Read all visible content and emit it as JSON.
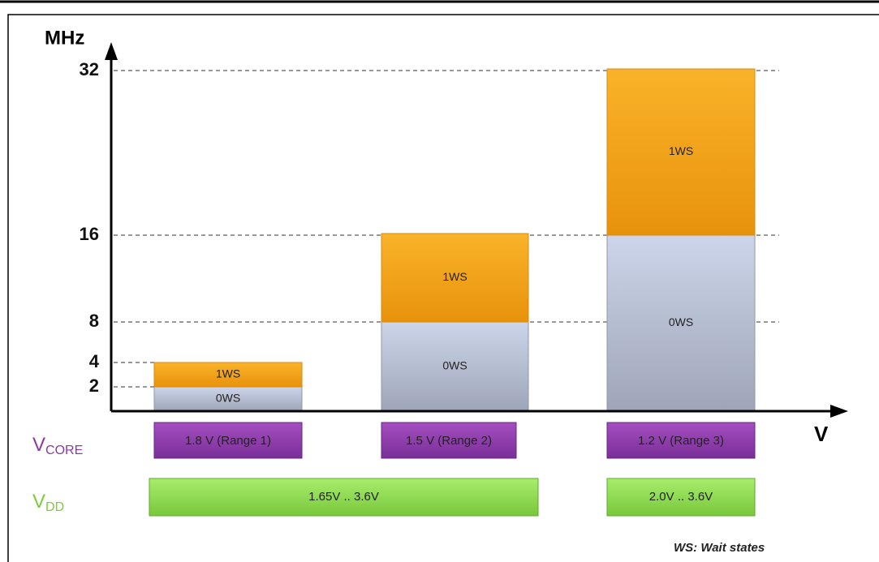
{
  "axis": {
    "y_label": "MHz",
    "x_label": "V",
    "ticks": [
      "32",
      "16",
      "8",
      "4",
      "2"
    ]
  },
  "bars": [
    {
      "segments": [
        "0WS",
        "1WS"
      ]
    },
    {
      "segments": [
        "0WS",
        "1WS"
      ]
    },
    {
      "segments": [
        "0WS",
        "1WS"
      ]
    }
  ],
  "vcore": {
    "label": "V",
    "sub": "CORE",
    "items": [
      "1.8 V (Range 1)",
      "1.5 V (Range 2)",
      "1.2 V (Range 3)"
    ]
  },
  "vdd": {
    "label": "V",
    "sub": "DD",
    "items": [
      "1.65V .. 3.6V",
      "2.0V .. 3.6V"
    ]
  },
  "note": "WS: Wait states"
}
